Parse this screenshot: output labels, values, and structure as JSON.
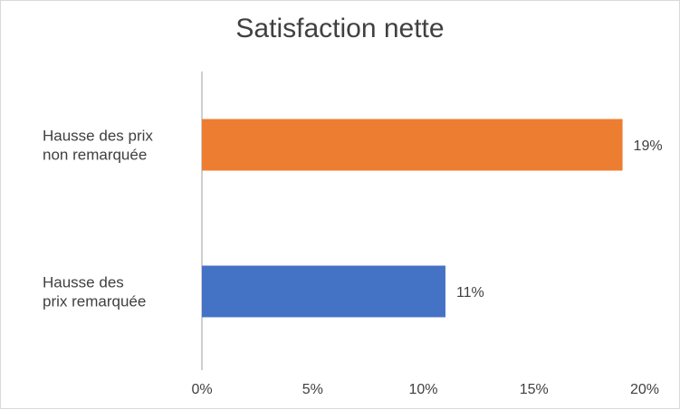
{
  "chart_data": {
    "type": "bar",
    "orientation": "horizontal",
    "title": "Satisfaction nette",
    "categories": [
      [
        "Hausse des prix",
        "non remarquée"
      ],
      [
        "Hausse des",
        "prix remarquée"
      ]
    ],
    "values": [
      19,
      11
    ],
    "data_labels": [
      "19%",
      "11%"
    ],
    "colors": [
      "#ed7d31",
      "#4472c4"
    ],
    "xlim": [
      0,
      20
    ],
    "x_ticks": [
      0,
      5,
      10,
      15,
      20
    ],
    "x_tick_labels": [
      "0%",
      "5%",
      "10%",
      "15%",
      "20%"
    ],
    "xlabel": "",
    "ylabel": "",
    "grid": false,
    "legend": "none"
  }
}
